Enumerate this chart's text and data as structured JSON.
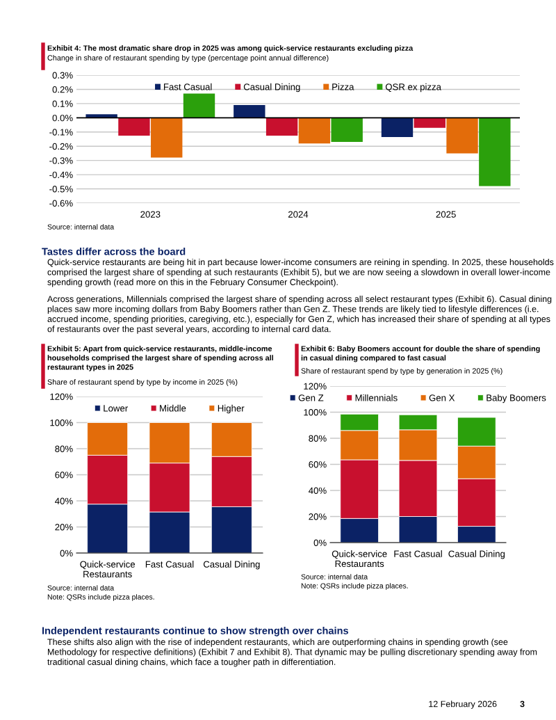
{
  "chart_data": [
    {
      "type": "bar",
      "title": "Exhibit 4: The most dramatic share drop in 2025 was among quick-service restaurants excluding pizza",
      "subtitle": "Change in share of restaurant spending by type (percentage point annual difference)",
      "categories": [
        "2023",
        "2024",
        "2025"
      ],
      "series": [
        {
          "name": "Fast Casual",
          "color": "#0b2265",
          "values": [
            0.025,
            0.09,
            -0.135
          ]
        },
        {
          "name": "Casual Dining",
          "color": "#c8102e",
          "values": [
            -0.125,
            -0.125,
            -0.07
          ]
        },
        {
          "name": "Pizza",
          "color": "#e36c0a",
          "values": [
            -0.28,
            -0.18,
            -0.25
          ]
        },
        {
          "name": "QSR ex pizza",
          "color": "#2ba00c",
          "values": [
            0.17,
            -0.17,
            -0.48
          ]
        }
      ],
      "ylim": [
        -0.6,
        0.3
      ],
      "yticks": [
        {
          "value": -0.6,
          "label": "-0.6%"
        },
        {
          "value": -0.5,
          "label": "-0.5%"
        },
        {
          "value": -0.4,
          "label": "-0.4%"
        },
        {
          "value": -0.3,
          "label": "-0.3%"
        },
        {
          "value": -0.2,
          "label": "-0.2%"
        },
        {
          "value": -0.1,
          "label": "-0.1%"
        },
        {
          "value": 0.0,
          "label": "0.0%"
        },
        {
          "value": 0.1,
          "label": "0.1%"
        },
        {
          "value": 0.2,
          "label": "0.2%"
        },
        {
          "value": 0.3,
          "label": "0.3%"
        }
      ],
      "grid": "y",
      "legend": "top",
      "annotations": [
        "Source: internal data"
      ]
    },
    {
      "type": "other",
      "title": "Tastes differ across the board",
      "annotations": [
        "Quick-service restaurants are being hit in part because lower-income consumers are reining in spending. In 2025, these households comprised the largest share of spending at such restaurants (Exhibit 5), but we are now seeing a slowdown in overall lower-income spending growth (read more on this in the February Consumer Checkpoint).",
        "Across generations, Millennials comprised the largest share of spending across all select restaurant types (Exhibit 6). Casual dining places saw more incoming dollars from Baby Boomers rather than Gen Z. These trends are likely tied to lifestyle differences (i.e. accrued income, spending priorities, caregiving, etc.), especially for Gen Z, which has increased their share of spending at all types of restaurants over the past several years, according to internal card data."
      ]
    },
    {
      "type": "bar",
      "stacked": true,
      "title": "Exhibit 5: Apart from quick-service restaurants, middle-income\nhouseholds comprised the largest share of spending across all\nrestaurant types in 2025",
      "subtitle": "Share of restaurant spend by type by income in 2025 (%)",
      "categories": [
        "Quick-service\nRestaurants",
        "Fast Casual",
        "Casual Dining"
      ],
      "series": [
        {
          "name": "Lower",
          "color": "#0b2265",
          "values": [
            37.5,
            31.5,
            35.5
          ]
        },
        {
          "name": "Middle",
          "color": "#c8102e",
          "values": [
            37.5,
            37.5,
            38.5
          ]
        },
        {
          "name": "Higher",
          "color": "#e36c0a",
          "values": [
            25,
            31,
            26
          ]
        }
      ],
      "ylim": [
        0,
        120
      ],
      "yticks": [
        {
          "value": 0,
          "label": "0%"
        },
        {
          "value": 20,
          "label": "20%"
        },
        {
          "value": 40,
          "label": "40%"
        },
        {
          "value": 60,
          "label": "60%"
        },
        {
          "value": 80,
          "label": "80%"
        },
        {
          "value": 100,
          "label": "100%"
        },
        {
          "value": 120,
          "label": "120%"
        }
      ],
      "grid": "y",
      "legend": "top",
      "annotations": [
        "Source: internal data",
        "Note: QSRs include pizza places."
      ]
    },
    {
      "type": "bar",
      "stacked": true,
      "title": "Exhibit 6: Baby Boomers account for double the share of spending\nin casual dining compared to fast casual",
      "subtitle": "Share of restaurant spend by type by generation in 2025 (%)",
      "categories": [
        "Quick-service\nRestaurants",
        "Fast Casual",
        "Casual Dining"
      ],
      "series": [
        {
          "name": "Gen Z",
          "color": "#0b2265",
          "values": [
            18.5,
            20,
            12.5
          ]
        },
        {
          "name": "Millennials",
          "color": "#c8102e",
          "values": [
            45,
            43,
            36.5
          ]
        },
        {
          "name": "Gen X",
          "color": "#e36c0a",
          "values": [
            22.5,
            23.5,
            25
          ]
        },
        {
          "name": "Baby Boomers",
          "color": "#2ba00c",
          "values": [
            12.5,
            11.5,
            22
          ]
        }
      ],
      "ylim": [
        0,
        120
      ],
      "yticks": [
        {
          "value": 0,
          "label": "0%"
        },
        {
          "value": 20,
          "label": "20%"
        },
        {
          "value": 40,
          "label": "40%"
        },
        {
          "value": 60,
          "label": "60%"
        },
        {
          "value": 80,
          "label": "80%"
        },
        {
          "value": 100,
          "label": "100%"
        },
        {
          "value": 120,
          "label": "120%"
        }
      ],
      "grid": "y",
      "legend": "top",
      "annotations": [
        "Source: internal data",
        "Note: QSRs include pizza places."
      ]
    },
    {
      "type": "other",
      "title": "Independent restaurants continue to show strength over chains",
      "annotations": [
        "These shifts also align with the rise of independent restaurants, which are outperforming chains in spending growth (see Methodology for respective definitions) (Exhibit 7 and Exhibit 8). That dynamic may be pulling discretionary spending away from traditional casual dining chains, which face a tougher path in differentiation.",
        "12 February 2026",
        "3"
      ]
    }
  ]
}
